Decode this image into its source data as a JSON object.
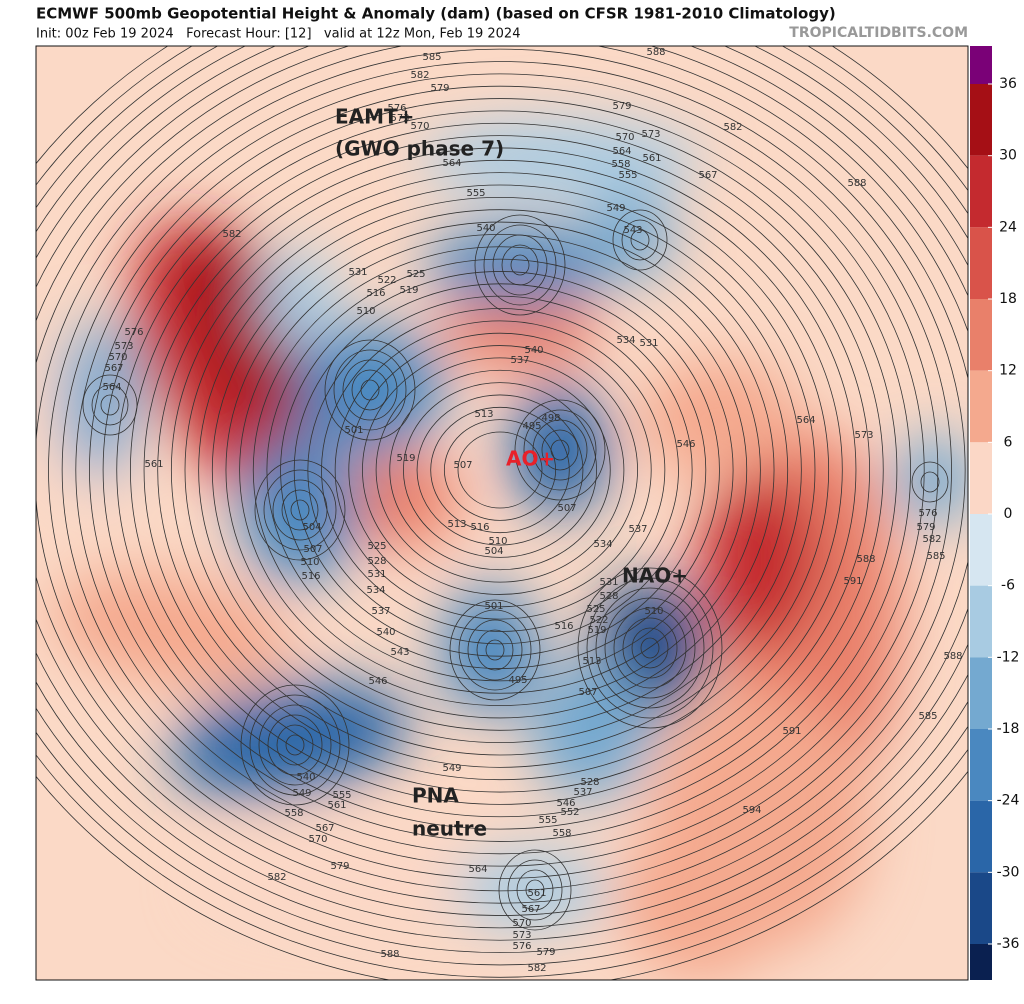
{
  "header": {
    "title": "ECMWF 500mb Geopotential Height & Anomaly (dam) (based on CFSR 1981-2010 Climatology)",
    "subtitle": "Init: 00z Feb 19 2024   Forecast Hour: [12]   valid at 12z Mon, Feb 19 2024",
    "site": "TROPICALTIDBITS.COM"
  },
  "annotations": [
    "EAMT+",
    "(GWO phase 7)",
    "AO+",
    "NAO+",
    "PNA",
    "neutre"
  ],
  "annotation_colors": [
    "#222222",
    "#222222",
    "#e8202a",
    "#222222",
    "#222222",
    "#222222"
  ],
  "colorbar": {
    "ticks": [
      36,
      30,
      24,
      18,
      12,
      6,
      0,
      -6,
      -12,
      -18,
      -24,
      -30,
      -36
    ],
    "colors": [
      "#a50f15",
      "#c42a2f",
      "#d9534a",
      "#e9806a",
      "#f4a98e",
      "#fbd7c6",
      "#d6e6f1",
      "#a8cbe2",
      "#74a9d0",
      "#4a88c0",
      "#2a66a8",
      "#1a4888"
    ],
    "over_color": "#7a0177",
    "under_color": "#0a2050"
  },
  "contour_labels": [
    588,
    585,
    582,
    579,
    576,
    573,
    570,
    564,
    579,
    570,
    573,
    564,
    558,
    561,
    555,
    567,
    582,
    588,
    555,
    549,
    543,
    540,
    582,
    531,
    525,
    522,
    519,
    516,
    510,
    576,
    573,
    570,
    567,
    564,
    537,
    540,
    534,
    531,
    513,
    498,
    495,
    501,
    546,
    564,
    573,
    561,
    519,
    507,
    507,
    513,
    516,
    537,
    504,
    510,
    504,
    534,
    525,
    528,
    531,
    534,
    537,
    540,
    543,
    546,
    507,
    510,
    516,
    531,
    528,
    525,
    522,
    519,
    516,
    510,
    513,
    507,
    501,
    495,
    576,
    579,
    582,
    585,
    588,
    591,
    588,
    585,
    591,
    594,
    540,
    549,
    555,
    561,
    558,
    567,
    570,
    549,
    546,
    552,
    555,
    558,
    537,
    528,
    564,
    561,
    567,
    570,
    573,
    576,
    579,
    582,
    579,
    582,
    588
  ]
}
